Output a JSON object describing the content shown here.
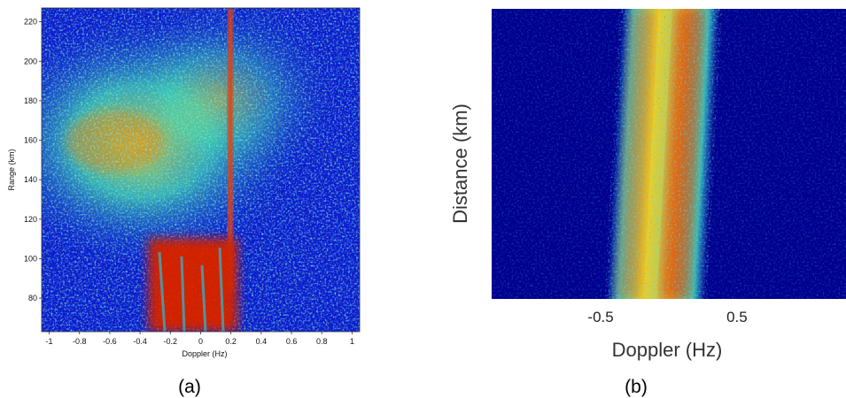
{
  "colors": {
    "background": "#00008f",
    "low": "#1030c8",
    "mid": "#20d0e0",
    "high": "#f0e020",
    "peak": "#c01000"
  },
  "chart_data": [
    {
      "type": "heatmap",
      "caption": "(a)",
      "xlabel": "Doppler (Hz)",
      "ylabel": "Range (km)",
      "xlim": [
        -1.05,
        1.05
      ],
      "ylim": [
        63,
        227
      ],
      "x_ticks": [
        "-1",
        "-0.8",
        "-0.6",
        "-0.4",
        "-0.2",
        "0",
        "0.2",
        "0.4",
        "0.6",
        "0.8",
        "1"
      ],
      "x_tick_values": [
        -1,
        -0.8,
        -0.6,
        -0.4,
        -0.2,
        0,
        0.2,
        0.4,
        0.6,
        0.8,
        1
      ],
      "y_ticks": [
        "80",
        "100",
        "120",
        "140",
        "160",
        "180",
        "200",
        "220"
      ],
      "y_tick_values": [
        80,
        100,
        120,
        140,
        160,
        180,
        200,
        220
      ],
      "features": [
        {
          "kind": "broad-clutter",
          "doppler_center": -0.5,
          "range_center": 150
        },
        {
          "kind": "vertical-line",
          "doppler": 0.22,
          "range_from": 100,
          "range_to": 227
        },
        {
          "kind": "near-range-strong",
          "doppler_from": -0.3,
          "doppler_to": 0.25,
          "range_from": 63,
          "range_to": 100
        }
      ]
    },
    {
      "type": "heatmap",
      "caption": "(b)",
      "xlabel": "Doppler (Hz)",
      "ylabel": "Distance (km)",
      "xlim": [
        -1.3,
        1.3
      ],
      "x_ticks": [
        "-0.5",
        "0.5"
      ],
      "x_tick_values": [
        -0.5,
        0.5
      ],
      "features": [
        {
          "kind": "bragg-line",
          "doppler": -0.38
        },
        {
          "kind": "bragg-line",
          "doppler": 0.38
        }
      ]
    }
  ]
}
